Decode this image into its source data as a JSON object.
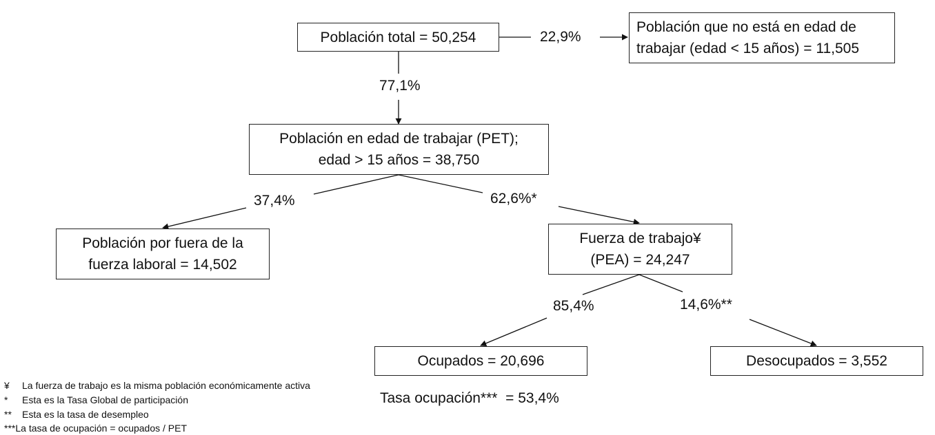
{
  "nodes": {
    "total": "Población total = 50,254",
    "no_edad": [
      "Población que no está en edad de",
      "trabajar (edad < 15 años) = 11,505"
    ],
    "pet": [
      "Población en edad de trabajar (PET);",
      "edad > 15 años = 38,750"
    ],
    "fuera": [
      "Población por fuera de la",
      "fuerza laboral = 14,502"
    ],
    "pea": [
      "Fuerza de trabajo¥",
      "(PEA) = 24,247"
    ],
    "ocupados": "Ocupados = 20,696",
    "desocupados": "Desocupados = 3,552"
  },
  "edges": {
    "total_to_no_edad": "22,9%",
    "total_to_pet": "77,1%",
    "pet_to_fuera": "37,4%",
    "pet_to_pea": "62,6%*",
    "pea_to_ocupados": "85,4%",
    "pea_to_desocupados": "14,6%**"
  },
  "tasa_ocupacion": "Tasa ocupación***  = 53,4%",
  "footnotes": [
    {
      "symbol": "¥",
      "text": "La fuerza de trabajo es la misma población económicamente activa"
    },
    {
      "symbol": "*",
      "text": "Esta es la Tasa Global de participación"
    },
    {
      "symbol": "**",
      "text": "Esta es la tasa de desempleo"
    },
    {
      "symbol": "***",
      "text": "La tasa de ocupación = ocupados / PET"
    }
  ]
}
